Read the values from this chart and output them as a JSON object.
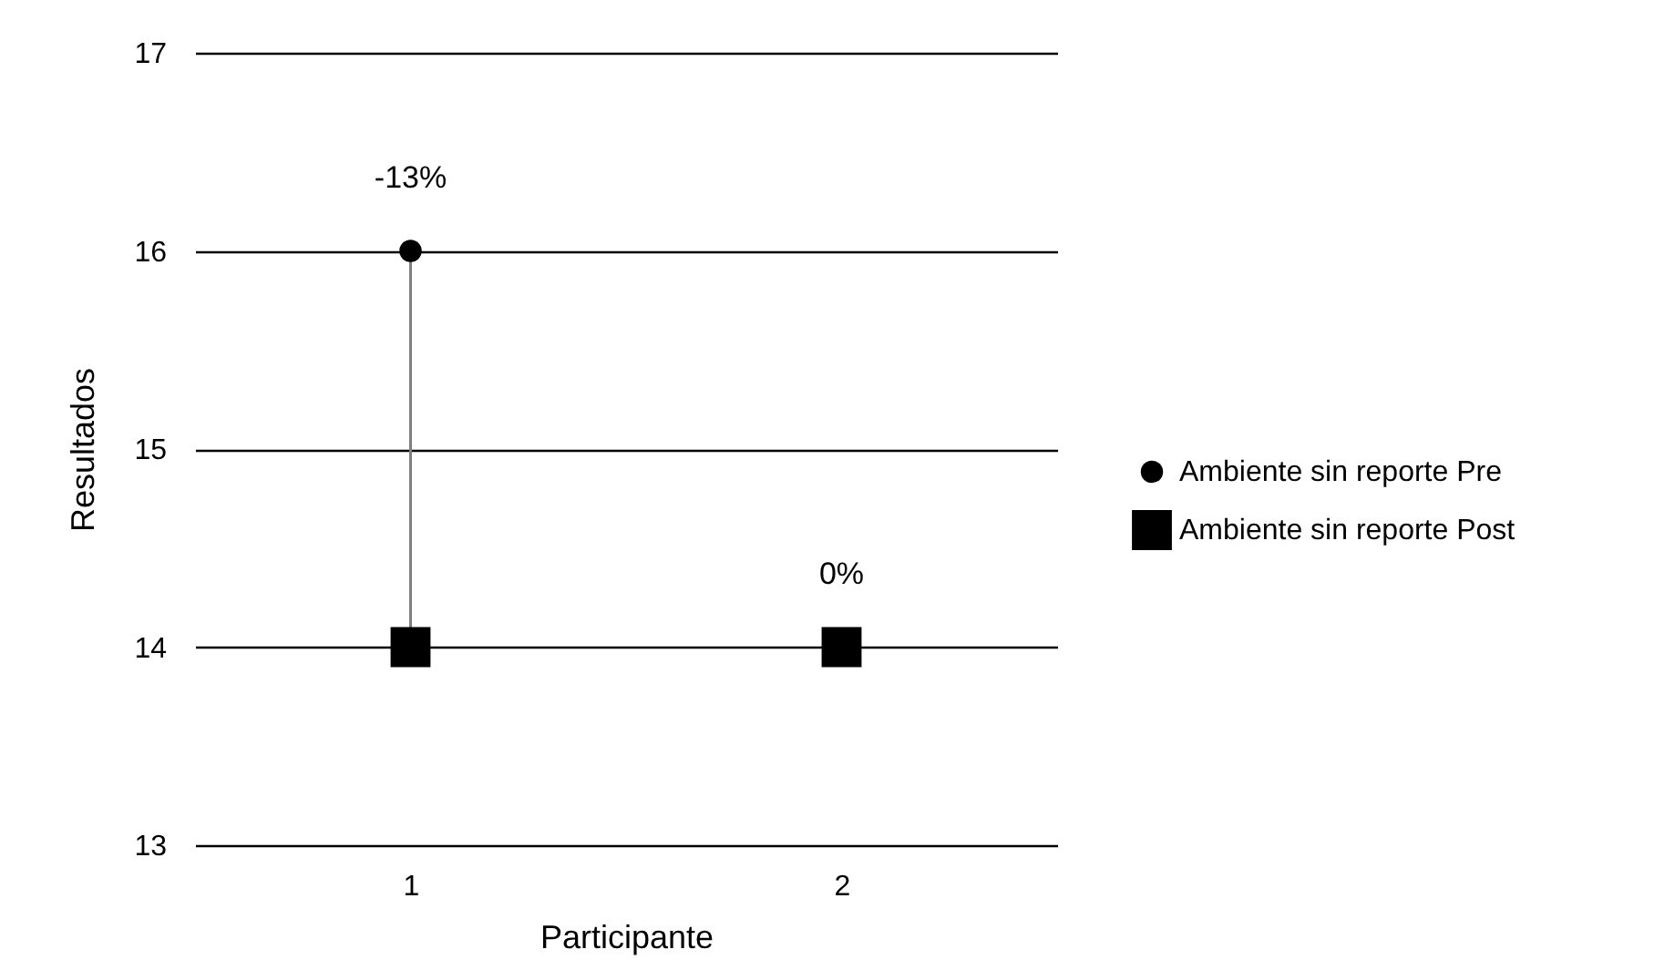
{
  "chart_data": {
    "type": "scatter",
    "categories": [
      "1",
      "2"
    ],
    "xlabel": "Participante",
    "ylabel": "Resultados",
    "ylim": [
      13,
      17
    ],
    "yticks": [
      13,
      14,
      15,
      16,
      17
    ],
    "grid": "y",
    "legend": "right",
    "series": [
      {
        "name": "Ambiente sin reporte Pre",
        "color": "#000000",
        "marker": "circle",
        "values": [
          16,
          null
        ]
      },
      {
        "name": "Ambiente sin reporte Post",
        "color": "#000000",
        "marker": "square",
        "values": [
          14,
          14
        ]
      }
    ],
    "annotations": [
      {
        "text": "-13%",
        "x": "1",
        "y": 16
      },
      {
        "text": "0%",
        "x": "2",
        "y": 14
      }
    ]
  }
}
